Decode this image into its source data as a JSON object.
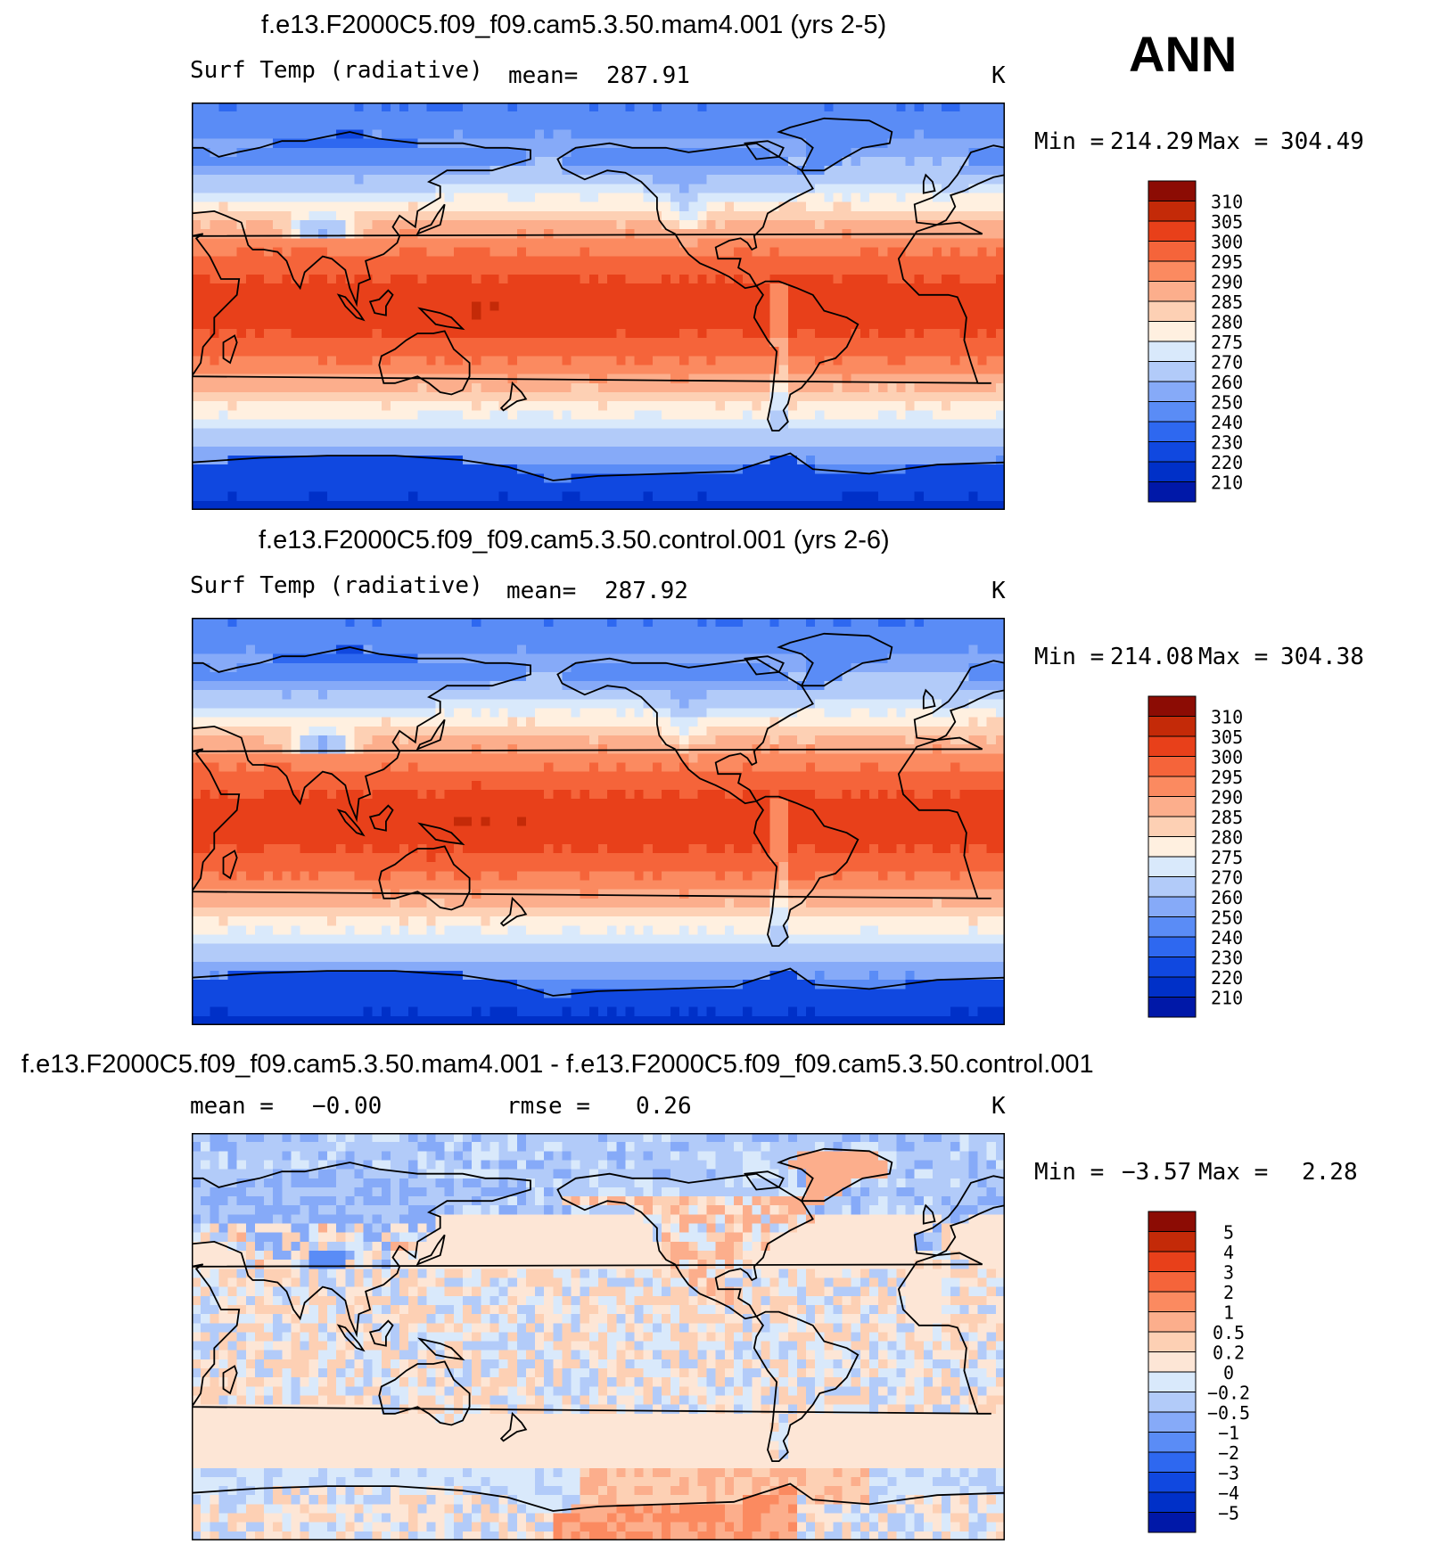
{
  "season": "ANN",
  "colors": {
    "abs": [
      "#00007a",
      "#0018a8",
      "#0030c8",
      "#1048e0",
      "#2e68f0",
      "#5a8cf6",
      "#86aaf8",
      "#b2cbf9",
      "#d9e9fb",
      "#fff0e0",
      "#fdd0b4",
      "#fcae8c",
      "#fb8a60",
      "#f5643a",
      "#e8401a",
      "#c42a08",
      "#8c0c04"
    ],
    "diff": [
      "#00007a",
      "#0018a8",
      "#0030c8",
      "#1048e0",
      "#2e68f0",
      "#5a8cf6",
      "#86aaf8",
      "#b2cbf9",
      "#d9e9fb",
      "#fde6d6",
      "#fdd0b4",
      "#fcae8c",
      "#fb8a60",
      "#f5643a",
      "#e8401a",
      "#c42a08",
      "#8c0c04"
    ]
  },
  "chart_data": [
    {
      "type": "heatmap",
      "title": "f.e13.F2000C5.f09_f09.cam5.3.50.mam4.001 (yrs 2-5)",
      "variable": "Surf Temp (radiative)",
      "mean_label": "mean=",
      "mean_value": "287.91",
      "units": "K",
      "min_label": "Min =",
      "min_value": "214.29",
      "max_label": "Max =",
      "max_value": "304.49",
      "colorbar_levels": [
        "310",
        "305",
        "300",
        "295",
        "290",
        "285",
        "280",
        "275",
        "270",
        "260",
        "250",
        "240",
        "230",
        "220",
        "210"
      ],
      "colormap": "abs",
      "field": {
        "kind": "abs",
        "pole_north": 250,
        "pole_south": 222,
        "tropics": 300,
        "land_anomaly_tibet": -25,
        "greenland": 245
      }
    },
    {
      "type": "heatmap",
      "title": "f.e13.F2000C5.f09_f09.cam5.3.50.control.001 (yrs 2-6)",
      "variable": "Surf Temp (radiative)",
      "mean_label": "mean=",
      "mean_value": "287.92",
      "units": "K",
      "min_label": "Min =",
      "min_value": "214.08",
      "max_label": "Max =",
      "max_value": "304.38",
      "colorbar_levels": [
        "310",
        "305",
        "300",
        "295",
        "290",
        "285",
        "280",
        "275",
        "270",
        "260",
        "250",
        "240",
        "230",
        "220",
        "210"
      ],
      "colormap": "abs",
      "field": {
        "kind": "abs",
        "pole_north": 250,
        "pole_south": 222,
        "tropics": 300,
        "land_anomaly_tibet": -25,
        "greenland": 245
      }
    },
    {
      "type": "heatmap",
      "title": "f.e13.F2000C5.f09_f09.cam5.3.50.mam4.001 - f.e13.F2000C5.f09_f09.cam5.3.50.control.001",
      "mean_label": "mean =",
      "mean_value": "−0.00",
      "rmse_label": "rmse =",
      "rmse_value": "0.26",
      "units": "K",
      "min_label": "Min =",
      "min_value": "−3.57",
      "max_label": "Max =",
      "max_value": "2.28",
      "colorbar_levels": [
        "5",
        "4",
        "3",
        "2",
        "1",
        "0.5",
        "0.2",
        "0",
        "−0.2",
        "−0.5",
        "−1",
        "−2",
        "−3",
        "−4",
        "−5"
      ],
      "colormap": "diff",
      "field": {
        "kind": "diff"
      }
    }
  ]
}
